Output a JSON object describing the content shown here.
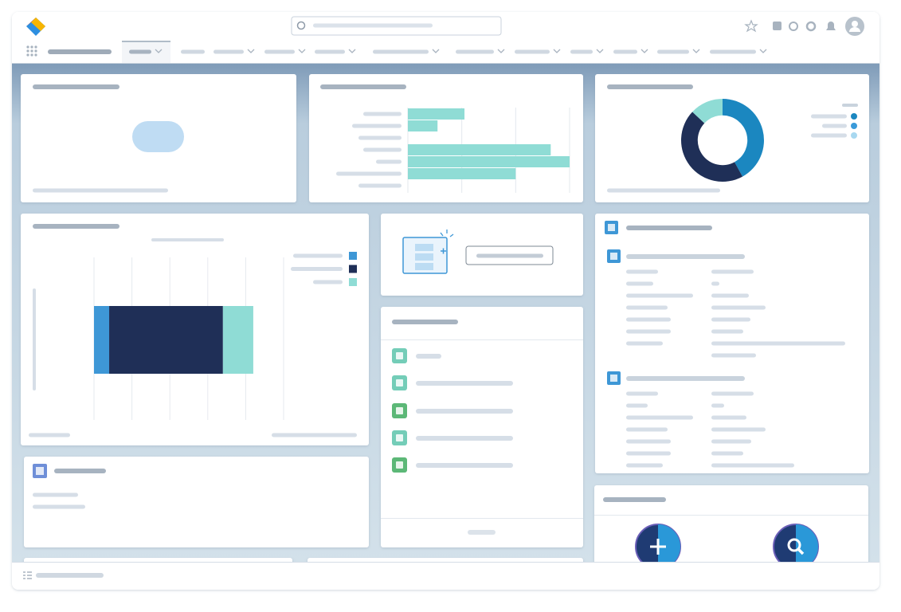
{
  "chart_data": [
    {
      "type": "bar",
      "orientation": "horizontal",
      "categories": [
        null,
        null,
        null,
        null,
        null,
        null,
        null
      ],
      "values": [
        1.05,
        0.55,
        0,
        2.65,
        3,
        2,
        0
      ],
      "color": "#8fdcd5",
      "xlim": [
        0,
        3
      ],
      "xticks": [
        0,
        1,
        2,
        3
      ],
      "grid": true
    },
    {
      "type": "pie",
      "hole": 0.6,
      "values": [
        42,
        45,
        13
      ],
      "colors": [
        "#1b87c0",
        "#1f2f57",
        "#8fdcd5"
      ]
    },
    {
      "type": "bar",
      "orientation": "horizontal",
      "stacked": true,
      "categories": [
        null
      ],
      "series": [
        {
          "color": "#3e97d6",
          "values": [
            0.4
          ]
        },
        {
          "color": "#1f2f57",
          "values": [
            3
          ]
        },
        {
          "color": "#8fdcd5",
          "values": [
            0.8
          ]
        }
      ],
      "xlim": [
        0,
        5
      ],
      "xticks": [
        0,
        1,
        2,
        3,
        4,
        5
      ],
      "grid": true
    }
  ]
}
